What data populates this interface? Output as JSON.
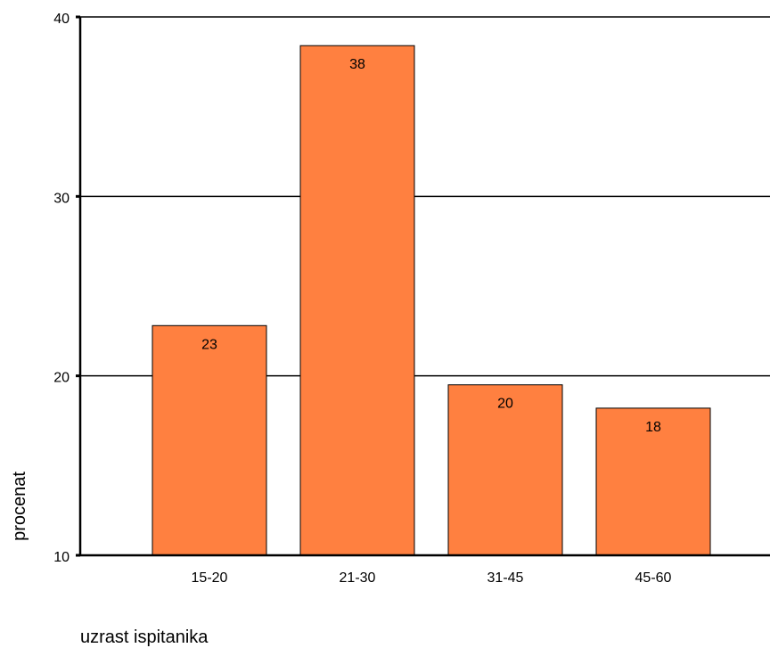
{
  "chart_data": {
    "type": "bar",
    "categories": [
      "15-20",
      "21-30",
      "31-45",
      "45-60"
    ],
    "values": [
      22.8,
      38.4,
      19.5,
      18.2
    ],
    "data_labels": [
      "23",
      "38",
      "20",
      "18"
    ],
    "title": "",
    "xlabel": "uzrast ispitanika",
    "ylabel": "procenat",
    "ylim": [
      10,
      40
    ],
    "yticks": [
      10,
      20,
      30,
      40
    ],
    "grid": true,
    "legend": "none",
    "colors": {
      "bar_fill": "#ff8040",
      "bar_stroke": "#000000"
    }
  }
}
